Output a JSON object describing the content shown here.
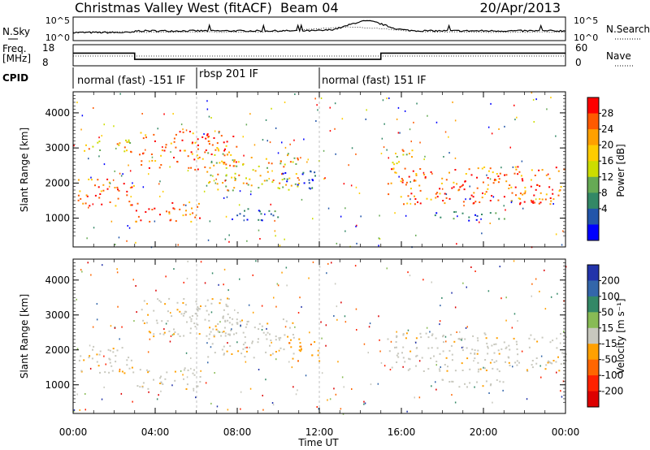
{
  "header": {
    "station": "Christmas Valley West (fitACF)",
    "beam": "Beam 04",
    "date": "20/Apr/2013"
  },
  "nsky_panel": {
    "left_label": "N.Sky",
    "right_label": "N.Search",
    "left_ticks": [
      "10^5",
      "10^0"
    ],
    "right_ticks": [
      "10^5",
      "10^0"
    ]
  },
  "freq_panel": {
    "left_label_1": "Freq.",
    "left_label_2": "[MHz]",
    "right_label": "Nave",
    "left_ticks": [
      "18",
      "8"
    ],
    "right_ticks": [
      "60",
      "0"
    ],
    "freq_values_mhz": [
      {
        "t": 0,
        "v": 14.4
      },
      {
        "t": 3.0,
        "v": 10.2
      },
      {
        "t": 15.0,
        "v": 14.4
      },
      {
        "t": 24,
        "v": 14.4
      }
    ]
  },
  "cpid_panel": {
    "label": "CPID",
    "segments": [
      {
        "start": 0,
        "label": "normal (fast) -151 IF"
      },
      {
        "start": 6.0,
        "label": "rbsp 201 IF"
      },
      {
        "start": 12.0,
        "label": "normal (fast) 151 IF"
      }
    ]
  },
  "time_axis": {
    "label": "Time UT",
    "ticks": [
      "00:00",
      "04:00",
      "08:00",
      "12:00",
      "16:00",
      "20:00",
      "00:00"
    ]
  },
  "chart_data": [
    {
      "type": "heatmap",
      "ylabel": "Slant Range [km]",
      "xlim": [
        0,
        24
      ],
      "ylim": [
        180,
        4600
      ],
      "yticks": [
        1000,
        2000,
        3000,
        4000
      ],
      "colorbar": {
        "label": "Power [dB]",
        "ticks": [
          "28",
          "24",
          "20",
          "16",
          "12",
          "8",
          "4"
        ],
        "colors": [
          "#ff0000",
          "#ff5a00",
          "#ffa000",
          "#ffcc00",
          "#ccdd00",
          "#66aa55",
          "#338866",
          "#2255aa",
          "#0000ff"
        ]
      },
      "regions": [
        {
          "t0": 0.2,
          "t1": 3.0,
          "r0": 1350,
          "r1": 2150,
          "level": "high"
        },
        {
          "t0": 3.0,
          "t1": 6.2,
          "r0": 900,
          "r1": 1500,
          "level": "high"
        },
        {
          "t0": 0.3,
          "t1": 2.9,
          "r0": 2900,
          "r1": 3300,
          "level": "mid"
        },
        {
          "t0": 3.2,
          "t1": 8.0,
          "r0": 2400,
          "r1": 3500,
          "level": "high"
        },
        {
          "t0": 6.5,
          "t1": 11.0,
          "r0": 1800,
          "r1": 2900,
          "level": "mid"
        },
        {
          "t0": 7.5,
          "t1": 10.0,
          "r0": 900,
          "r1": 1300,
          "level": "low"
        },
        {
          "t0": 10.0,
          "t1": 11.8,
          "r0": 1800,
          "r1": 2400,
          "level": "low"
        },
        {
          "t0": 15.3,
          "t1": 24.0,
          "r0": 1400,
          "r1": 2500,
          "level": "high"
        },
        {
          "t0": 15.5,
          "t1": 16.5,
          "r0": 2400,
          "r1": 3200,
          "level": "mid"
        },
        {
          "t0": 17.5,
          "t1": 21.0,
          "r0": 950,
          "r1": 1200,
          "level": "low"
        }
      ]
    },
    {
      "type": "heatmap",
      "ylabel": "Slant Range [km]",
      "xlim": [
        0,
        24
      ],
      "ylim": [
        180,
        4600
      ],
      "yticks": [
        1000,
        2000,
        3000,
        4000
      ],
      "colorbar": {
        "label": "Velocity [m s⁻¹]",
        "ticks": [
          "200",
          "100",
          "50",
          "15",
          "-15",
          "-50",
          "-100",
          "-200"
        ],
        "colors": [
          "#2233aa",
          "#3366aa",
          "#338866",
          "#88bb55",
          "#c8c8be",
          "#ffa000",
          "#ff6600",
          "#ff2200",
          "#dd0000"
        ]
      },
      "regions": [
        {
          "t0": 0.2,
          "t1": 3.0,
          "r0": 1350,
          "r1": 2150,
          "level": "ground"
        },
        {
          "t0": 3.0,
          "t1": 6.2,
          "r0": 900,
          "r1": 1500,
          "level": "ground"
        },
        {
          "t0": 3.2,
          "t1": 8.0,
          "r0": 2400,
          "r1": 3500,
          "level": "ground"
        },
        {
          "t0": 6.5,
          "t1": 11.0,
          "r0": 1800,
          "r1": 2900,
          "level": "ground"
        },
        {
          "t0": 10.5,
          "t1": 12.0,
          "r0": 1700,
          "r1": 2400,
          "level": "negative"
        },
        {
          "t0": 15.3,
          "t1": 24.0,
          "r0": 1400,
          "r1": 2500,
          "level": "ground"
        },
        {
          "t0": 17.5,
          "t1": 21.0,
          "r0": 950,
          "r1": 1200,
          "level": "ground"
        }
      ]
    }
  ]
}
